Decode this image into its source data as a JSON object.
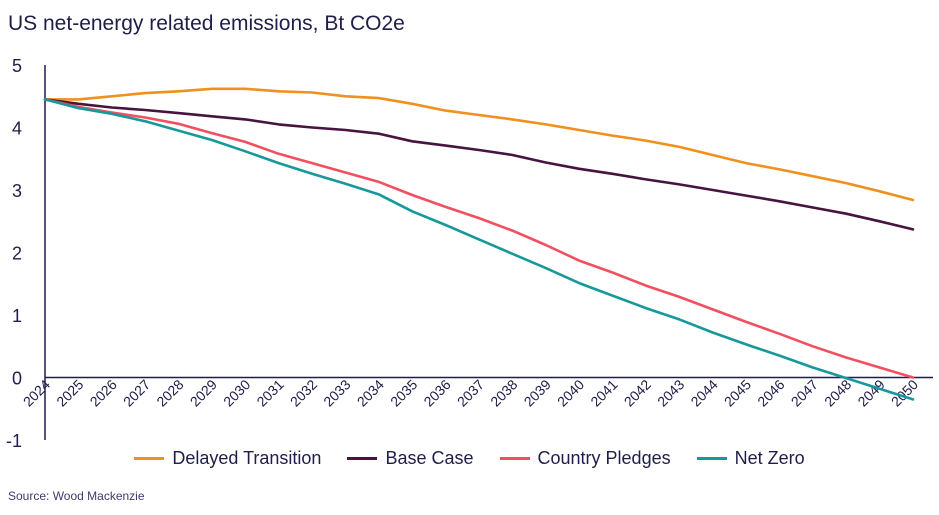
{
  "title": "US net-energy related emissions, Bt CO2e",
  "source": "Source: Wood Mackenzie",
  "colors": {
    "axis": "#1f1d4a",
    "text": "#1f1d4a"
  },
  "chart_data": {
    "type": "line",
    "title": "US net-energy related emissions, Bt CO2e",
    "x": [
      2024,
      2025,
      2026,
      2027,
      2028,
      2029,
      2030,
      2031,
      2032,
      2033,
      2034,
      2035,
      2036,
      2037,
      2038,
      2039,
      2040,
      2041,
      2042,
      2043,
      2044,
      2045,
      2046,
      2047,
      2048,
      2049,
      2050
    ],
    "ylim": [
      -1,
      5
    ],
    "yticks": [
      -1,
      0,
      1,
      2,
      3,
      4,
      5
    ],
    "grid": false,
    "legend": "bottom",
    "series": [
      {
        "name": "Delayed Transition",
        "color": "#f0901e",
        "values": [
          4.45,
          4.45,
          4.5,
          4.55,
          4.58,
          4.62,
          4.62,
          4.58,
          4.56,
          4.5,
          4.47,
          4.38,
          4.27,
          4.2,
          4.13,
          4.05,
          3.96,
          3.87,
          3.79,
          3.69,
          3.56,
          3.43,
          3.33,
          3.22,
          3.11,
          2.98,
          2.84
        ]
      },
      {
        "name": "Base Case",
        "color": "#47133f",
        "values": [
          4.45,
          4.38,
          4.32,
          4.28,
          4.23,
          4.18,
          4.13,
          4.05,
          4.0,
          3.96,
          3.9,
          3.78,
          3.71,
          3.64,
          3.56,
          3.44,
          3.34,
          3.26,
          3.17,
          3.09,
          3.0,
          2.91,
          2.82,
          2.72,
          2.62,
          2.5,
          2.37
        ]
      },
      {
        "name": "Country Pledges",
        "color": "#f05060",
        "values": [
          4.45,
          4.33,
          4.24,
          4.16,
          4.06,
          3.91,
          3.77,
          3.58,
          3.43,
          3.28,
          3.13,
          2.92,
          2.73,
          2.55,
          2.35,
          2.12,
          1.87,
          1.68,
          1.47,
          1.29,
          1.09,
          0.89,
          0.7,
          0.5,
          0.32,
          0.16,
          0.0
        ]
      },
      {
        "name": "Net Zero",
        "color": "#17989b",
        "values": [
          4.45,
          4.31,
          4.22,
          4.1,
          3.95,
          3.8,
          3.62,
          3.43,
          3.26,
          3.1,
          2.93,
          2.66,
          2.44,
          2.21,
          1.98,
          1.75,
          1.51,
          1.31,
          1.11,
          0.93,
          0.72,
          0.53,
          0.35,
          0.16,
          -0.01,
          -0.18,
          -0.35
        ]
      }
    ]
  }
}
